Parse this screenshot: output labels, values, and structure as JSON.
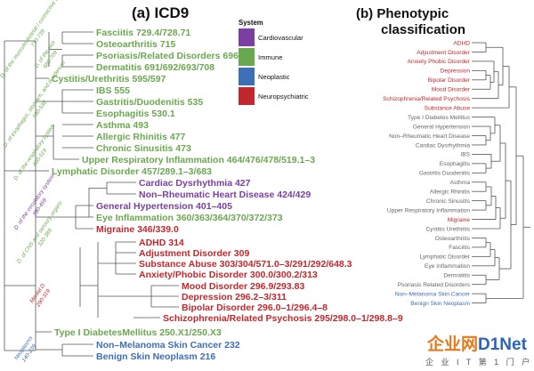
{
  "panel_a": {
    "title": "(a) ICD9",
    "labels": [
      {
        "text": "Fasciitis  729.4/728.71",
        "color": "#6aa84f"
      },
      {
        "text": "Osteoarthritis 715",
        "color": "#6aa84f"
      },
      {
        "text": "Psoriasis/Related Disorders  696",
        "color": "#6aa84f"
      },
      {
        "text": "Dermatitis  691/692/693/708",
        "color": "#6aa84f"
      },
      {
        "text": "Cystitis/Urethritis 595/597",
        "color": "#6aa84f"
      },
      {
        "text": "IBS 555",
        "color": "#6aa84f"
      },
      {
        "text": "Gastritis/Duodenitis 535",
        "color": "#6aa84f"
      },
      {
        "text": "Esophagitis 530.1",
        "color": "#6aa84f"
      },
      {
        "text": "Asthma 493",
        "color": "#6aa84f"
      },
      {
        "text": "Allergic Rhinitis 477",
        "color": "#6aa84f"
      },
      {
        "text": "Chronic Sinusitis 473",
        "color": "#6aa84f"
      },
      {
        "text": "Upper Respiratory Inflammation 464/476/478/519.1–3",
        "color": "#6aa84f"
      },
      {
        "text": "Lymphatic Disorder 457/289.1–3/683",
        "color": "#6aa84f"
      },
      {
        "text": "Cardiac Dysrhythmia 427",
        "color": "#7b3fa0"
      },
      {
        "text": "Non–Rheumatic Heart Disease 424/429",
        "color": "#7b3fa0"
      },
      {
        "text": "General Hypertension 401–405",
        "color": "#7b3fa0"
      },
      {
        "text": "Eye Inflammation 360/363/364/370/372/373",
        "color": "#6aa84f"
      },
      {
        "text": "Migraine 346/339.0",
        "color": "#c0282d"
      },
      {
        "text": "ADHD 314",
        "color": "#c0282d"
      },
      {
        "text": "Adjustment Disorder 309",
        "color": "#c0282d"
      },
      {
        "text": "Substance Abuse 303/304/571.0–3/291/292/648.3",
        "color": "#c0282d"
      },
      {
        "text": "Anxiety/Phobic Disorder 300.0/300.2/313",
        "color": "#c0282d"
      },
      {
        "text": "Mood Disorder 296.9/293.83",
        "color": "#c0282d"
      },
      {
        "text": "Depression 296.2–3/311",
        "color": "#c0282d"
      },
      {
        "text": "Bipolar Disorder 296.0–1/296.4–8",
        "color": "#c0282d"
      },
      {
        "text": "Schizophrenia/Related Psychosis 295/298.0–1/298.8–9",
        "color": "#c0282d"
      },
      {
        "text": "Type I DiabetesMellitus 250.X1/250.X3",
        "color": "#6aa84f"
      },
      {
        "text": "Non–Melanoma Skin Cancer 232",
        "color": "#3d6fb6"
      },
      {
        "text": "Benign Skin Neoplasm 216",
        "color": "#3d6fb6"
      }
    ],
    "groups": [
      {
        "text": "D. of the musculoskeletal / connective tissue",
        "sub": "710-739",
        "color": "#6aa84f"
      },
      {
        "text": "D. of the skin",
        "sub": "680-709",
        "color": "#6aa84f"
      },
      {
        "text": "D. of esophagus, stomach, and duodenum",
        "sub": "530-538",
        "color": "#6aa84f"
      },
      {
        "text": "D. of the respiratory system",
        "sub": "460-519",
        "color": "#6aa84f"
      },
      {
        "text": "D. of the circulatory system",
        "sub": "390-459",
        "color": "#7b3fa0"
      },
      {
        "text": "D. of CNS and sensory organs",
        "sub": "320-389",
        "color": "#6aa84f"
      },
      {
        "text": "Mental D.",
        "sub": "290-319",
        "color": "#c0282d"
      },
      {
        "text": "Neoplasms",
        "sub": "140-239",
        "color": "#3d6fb6"
      }
    ]
  },
  "legend": {
    "title": "System",
    "items": [
      {
        "label": "Cardiovascular",
        "color": "#7b3fa0"
      },
      {
        "label": "Immune",
        "color": "#6aa84f"
      },
      {
        "label": "Neoplastic",
        "color": "#3d6fb6"
      },
      {
        "label": "Neuropsychiatric",
        "color": "#c0282d"
      }
    ]
  },
  "panel_b": {
    "title_line1": "(b) Phenotypic",
    "title_line2": "classification",
    "labels": [
      {
        "text": "ADHD",
        "color": "#c0282d"
      },
      {
        "text": "Adjustment Disorder",
        "color": "#c0282d"
      },
      {
        "text": "Anxiety Phobic Disorder",
        "color": "#c0282d"
      },
      {
        "text": "Depression",
        "color": "#c0282d"
      },
      {
        "text": "Bipolar Disorder",
        "color": "#c0282d"
      },
      {
        "text": "Mood Disorder",
        "color": "#c0282d"
      },
      {
        "text": "Schizophrenia/Related Psychosis",
        "color": "#c0282d"
      },
      {
        "text": "Substance Abuse",
        "color": "#c0282d"
      },
      {
        "text": "Type I Diabetes Mellitus",
        "color": "#666666"
      },
      {
        "text": "General Hypertension",
        "color": "#666666"
      },
      {
        "text": "Non–Rheumatic Heart Disease",
        "color": "#666666"
      },
      {
        "text": "Cardiac Dysrhythmia",
        "color": "#666666"
      },
      {
        "text": "IBS",
        "color": "#666666"
      },
      {
        "text": "Esophagitis",
        "color": "#666666"
      },
      {
        "text": "Gastritis Duodenitis",
        "color": "#666666"
      },
      {
        "text": "Asthma",
        "color": "#666666"
      },
      {
        "text": "Allergic Rhinitis",
        "color": "#666666"
      },
      {
        "text": "Chronic Sinusitis",
        "color": "#666666"
      },
      {
        "text": "Upper Respiratory Inflammation",
        "color": "#666666"
      },
      {
        "text": "Migraine",
        "color": "#c0282d"
      },
      {
        "text": "Cystitis Urethritis",
        "color": "#666666"
      },
      {
        "text": "Osteoarthritis",
        "color": "#666666"
      },
      {
        "text": "Fasciitis",
        "color": "#666666"
      },
      {
        "text": "Lymphatic Disorder",
        "color": "#666666"
      },
      {
        "text": "Eye Inflammation",
        "color": "#666666"
      },
      {
        "text": "Dermatitis",
        "color": "#666666"
      },
      {
        "text": "Psoriasis Related Disorders",
        "color": "#666666"
      },
      {
        "text": "Non–Melanoma Skin Cancer",
        "color": "#3d6fb6"
      },
      {
        "text": "Benign Skin Neoplasm",
        "color": "#3d6fb6"
      }
    ]
  },
  "watermark": {
    "brand": "企业网",
    "brand2": "D1Net",
    "sub": "企 业 I T 第 1 门 户",
    "brand_color": "#e07a1f",
    "brand2_color": "#2b63b8"
  }
}
